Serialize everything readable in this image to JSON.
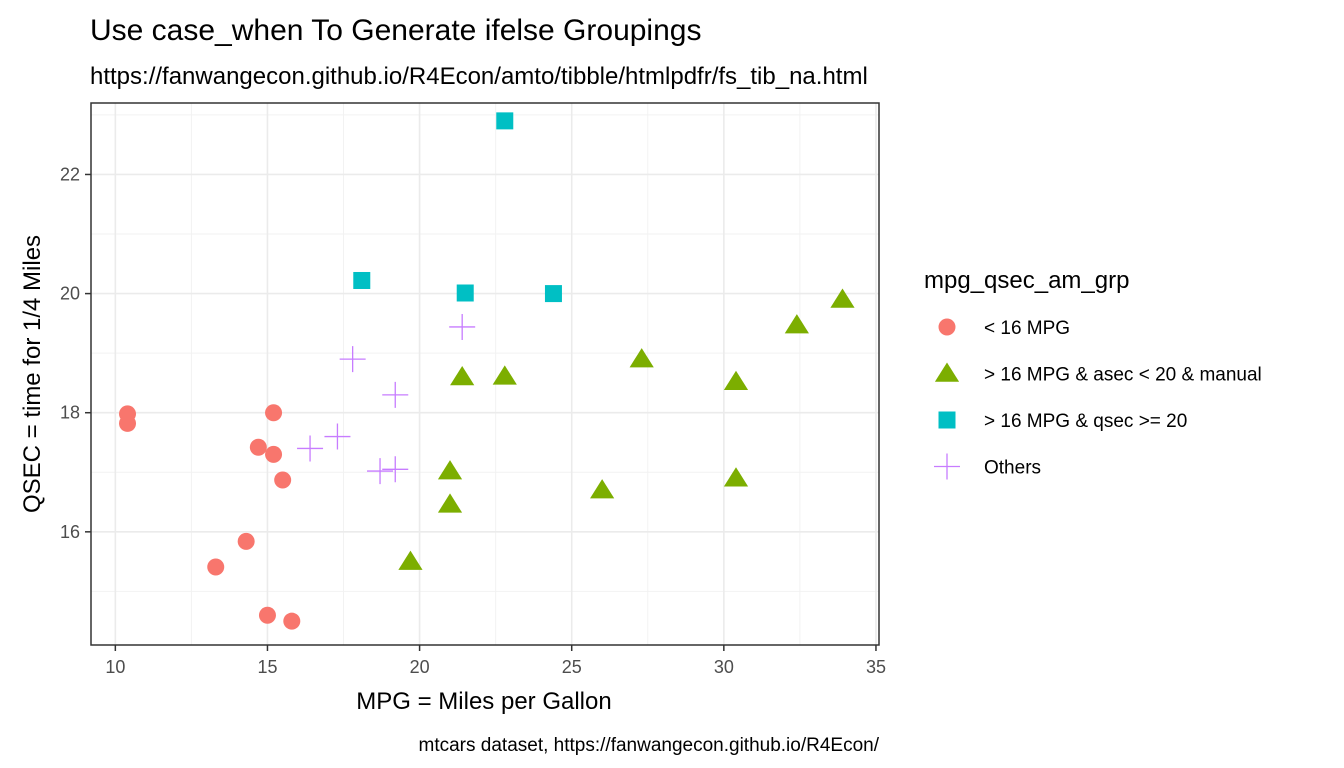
{
  "chart_data": {
    "type": "scatter",
    "title": "Use case_when To Generate ifelse Groupings",
    "subtitle": "https://fanwangecon.github.io/R4Econ/amto/tibble/htmlpdfr/fs_tib_na.html",
    "xlabel": "MPG = Miles per Gallon",
    "ylabel": "QSEC = time for 1/4 Miles",
    "caption": "mtcars dataset, https://fanwangecon.github.io/R4Econ/",
    "xlim": [
      9.2,
      35.1
    ],
    "ylim": [
      14.1,
      23.2
    ],
    "x_ticks": [
      10,
      15,
      20,
      25,
      30,
      35
    ],
    "y_ticks": [
      16,
      18,
      20,
      22
    ],
    "grid": true,
    "legend": {
      "title": "mpg_qsec_am_grp",
      "position": "right"
    },
    "series": [
      {
        "name": "< 16 MPG",
        "shape": "circle",
        "color": "#F8766D",
        "points": [
          {
            "x": 10.4,
            "y": 17.82
          },
          {
            "x": 10.4,
            "y": 17.98
          },
          {
            "x": 13.3,
            "y": 15.41
          },
          {
            "x": 14.3,
            "y": 15.84
          },
          {
            "x": 14.7,
            "y": 17.42
          },
          {
            "x": 15.0,
            "y": 14.6
          },
          {
            "x": 15.2,
            "y": 17.3
          },
          {
            "x": 15.2,
            "y": 18.0
          },
          {
            "x": 15.5,
            "y": 16.87
          },
          {
            "x": 15.8,
            "y": 14.5
          }
        ]
      },
      {
        "name": "> 16 MPG & asec < 20 & manual",
        "shape": "triangle",
        "color": "#7CAE00",
        "points": [
          {
            "x": 19.7,
            "y": 15.5
          },
          {
            "x": 21.0,
            "y": 17.02
          },
          {
            "x": 21.0,
            "y": 16.46
          },
          {
            "x": 21.4,
            "y": 18.6
          },
          {
            "x": 22.8,
            "y": 18.61
          },
          {
            "x": 26.0,
            "y": 16.7
          },
          {
            "x": 27.3,
            "y": 18.9
          },
          {
            "x": 30.4,
            "y": 16.9
          },
          {
            "x": 30.4,
            "y": 18.52
          },
          {
            "x": 32.4,
            "y": 19.47
          },
          {
            "x": 33.9,
            "y": 19.9
          }
        ]
      },
      {
        "name": "> 16 MPG & qsec >= 20",
        "shape": "square",
        "color": "#00BFC4",
        "points": [
          {
            "x": 18.1,
            "y": 20.22
          },
          {
            "x": 21.5,
            "y": 20.01
          },
          {
            "x": 22.8,
            "y": 22.9
          },
          {
            "x": 24.4,
            "y": 20.0
          }
        ]
      },
      {
        "name": "Others",
        "shape": "plus",
        "color": "#C77CFF",
        "points": [
          {
            "x": 16.4,
            "y": 17.4
          },
          {
            "x": 17.3,
            "y": 17.6
          },
          {
            "x": 17.8,
            "y": 18.9
          },
          {
            "x": 18.7,
            "y": 17.02
          },
          {
            "x": 19.2,
            "y": 18.3
          },
          {
            "x": 19.2,
            "y": 17.05
          },
          {
            "x": 21.4,
            "y": 19.44
          }
        ]
      }
    ]
  }
}
